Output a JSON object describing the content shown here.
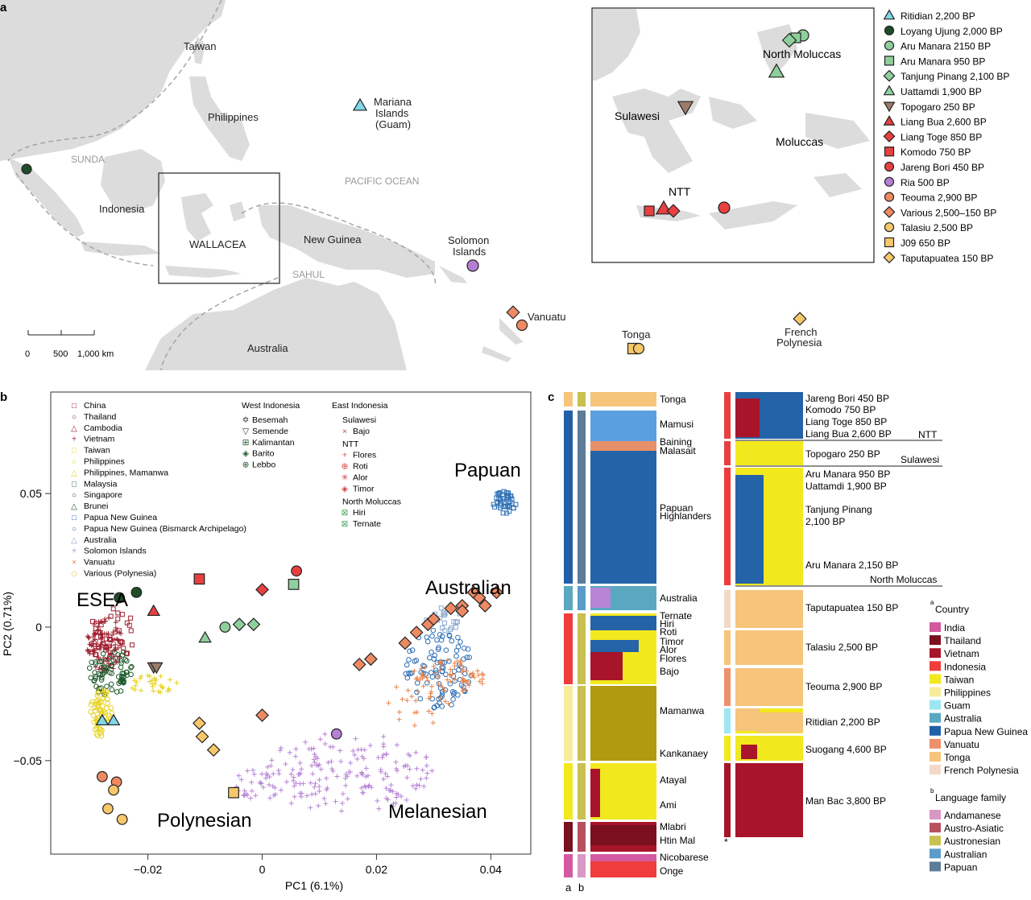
{
  "panel_a": {
    "letter": "a",
    "labels": {
      "taiwan": "Taiwan",
      "philippines": "Philippines",
      "sunda": "SUNDA",
      "indonesia": "Indonesia",
      "wallacea": "WALLACEA",
      "new_guinea": "New Guinea",
      "sahul": "SAHUL",
      "australia": "Australia",
      "pacific_ocean": "PACIFIC OCEAN",
      "mariana": [
        "Mariana",
        "Islands",
        "(Guam)"
      ],
      "solomon": [
        "Solomon",
        "Islands"
      ],
      "vanuatu": "Vanuatu",
      "tonga": "Tonga",
      "french_polynesia": [
        "French",
        "Polynesia"
      ]
    },
    "scale_bar": [
      "0",
      "500",
      "1,000 km"
    ],
    "inset_labels": {
      "north_moluccas": "North Moluccas",
      "sulawesi": "Sulawesi",
      "moluccas": "Moluccas",
      "ntt": "NTT"
    },
    "legend": [
      {
        "label": "Ritidian 2,200 BP",
        "shape": "triangle",
        "color": "#7fd6e8"
      },
      {
        "label": "Loyang Ujung 2,000 BP",
        "shape": "circle",
        "color": "#1e4d28"
      },
      {
        "label": "Aru Manara 2150 BP",
        "shape": "circle",
        "color": "#8fcf9c"
      },
      {
        "label": "Aru Manara 950 BP",
        "shape": "square",
        "color": "#8fcf9c"
      },
      {
        "label": "Tanjung Pinang 2,100 BP",
        "shape": "diamond",
        "color": "#8fcf9c"
      },
      {
        "label": "Uattamdi 1,900 BP",
        "shape": "triangle",
        "color": "#8fcf9c"
      },
      {
        "label": "Topogaro 250 BP",
        "shape": "triangle-down",
        "color": "#9c7b6a"
      },
      {
        "label": "Liang Bua 2,600 BP",
        "shape": "triangle",
        "color": "#e84040"
      },
      {
        "label": "Liang Toge 850 BP",
        "shape": "diamond",
        "color": "#e84040"
      },
      {
        "label": "Komodo 750 BP",
        "shape": "square",
        "color": "#e84040"
      },
      {
        "label": "Jareng Bori 450 BP",
        "shape": "circle",
        "color": "#e84040"
      },
      {
        "label": "Ria 500 BP",
        "shape": "circle",
        "color": "#b57fd6"
      },
      {
        "label": "Teouma 2,900 BP",
        "shape": "circle",
        "color": "#ee8a62"
      },
      {
        "label": "Various 2,500–150 BP",
        "shape": "diamond",
        "color": "#ee8a62"
      },
      {
        "label": "Talasiu 2,500 BP",
        "shape": "circle",
        "color": "#f6c86a"
      },
      {
        "label": "J09 650 BP",
        "shape": "square",
        "color": "#f6c86a"
      },
      {
        "label": "Taputapuatea 150 BP",
        "shape": "diamond",
        "color": "#f6c86a"
      }
    ]
  },
  "panel_b": {
    "letter": "b",
    "legend_left": [
      {
        "label": "China",
        "color": "#a02030",
        "marker": "□"
      },
      {
        "label": "Thailand",
        "color": "#a02030",
        "marker": "○"
      },
      {
        "label": "Cambodia",
        "color": "#a02030",
        "marker": "△"
      },
      {
        "label": "Vietnam",
        "color": "#a02030",
        "marker": "+"
      },
      {
        "label": "Taiwan",
        "color": "#e6d21e",
        "marker": "□"
      },
      {
        "label": "Philippines",
        "color": "#e6d21e",
        "marker": "○"
      },
      {
        "label": "Philippines, Mamanwa",
        "color": "#e6d21e",
        "marker": "△"
      },
      {
        "label": "Malaysia",
        "color": "#1e5a2c",
        "marker": "□"
      },
      {
        "label": "Singapore",
        "color": "#1e5a2c",
        "marker": "○"
      },
      {
        "label": "Brunei",
        "color": "#1e5a2c",
        "marker": "△"
      },
      {
        "label": "Papua New Guinea",
        "color": "#2e6fb5",
        "marker": "□"
      },
      {
        "label": "Papua New Guinea (Bismarck Archipelago)",
        "color": "#2e6fb5",
        "marker": "○"
      },
      {
        "label": "Australia",
        "color": "#8aa8d0",
        "marker": "△"
      },
      {
        "label": "Solomon Islands",
        "color": "#b784d6",
        "marker": "+"
      },
      {
        "label": "Vanuatu",
        "color": "#e8844a",
        "marker": "×"
      },
      {
        "label": "Various (Polynesia)",
        "color": "#e6c84a",
        "marker": "◇"
      }
    ],
    "west_title": "West Indonesia",
    "west": [
      {
        "label": "Besemah",
        "color": "#333333",
        "marker": "✡"
      },
      {
        "label": "Semende",
        "color": "#333333",
        "marker": "▽"
      },
      {
        "label": "Kalimantan",
        "color": "#1e5a2c",
        "marker": "⊞"
      },
      {
        "label": "Barito",
        "color": "#1e5a2c",
        "marker": "◈"
      },
      {
        "label": "Lebbo",
        "color": "#1e5a2c",
        "marker": "⊕"
      }
    ],
    "east_title": "East Indonesia",
    "east_groups": [
      {
        "title": "Sulawesi",
        "items": [
          {
            "label": "Bajo",
            "color": "#d64040",
            "marker": "×"
          }
        ]
      },
      {
        "title": "NTT",
        "items": [
          {
            "label": "Flores",
            "color": "#d64040",
            "marker": "+"
          },
          {
            "label": "Roti",
            "color": "#d64040",
            "marker": "⊕"
          },
          {
            "label": "Alor",
            "color": "#d64040",
            "marker": "✳"
          },
          {
            "label": "Timor",
            "color": "#d64040",
            "marker": "◈"
          }
        ]
      },
      {
        "title": "North Moluccas",
        "items": [
          {
            "label": "Hiri",
            "color": "#4fa864",
            "marker": "⊠"
          },
          {
            "label": "Ternate",
            "color": "#4fa864",
            "marker": "⊠"
          }
        ]
      }
    ],
    "region_labels": {
      "papuan": "Papuan",
      "australian": "Australian",
      "esea": "ESEA",
      "polynesian": "Polynesian",
      "melanesian": "Melanesian"
    }
  },
  "chart_data": {
    "type": "scatter",
    "xlabel": "PC1 (6.1%)",
    "ylabel": "PC2 (0.71%)",
    "xlim": [
      -0.037,
      0.047
    ],
    "ylim": [
      -0.085,
      0.088
    ],
    "xticks": [
      -0.02,
      0,
      0.02,
      0.04
    ],
    "xtick_labels": [
      "−0.02",
      "0",
      "0.02",
      "0.04"
    ],
    "yticks": [
      -0.05,
      0,
      0.05
    ],
    "ytick_labels": [
      "−0.05",
      "0",
      "0.05"
    ],
    "ancient_samples": [
      {
        "x": -0.026,
        "y": -0.035,
        "shape": "triangle",
        "color": "#7fd6e8"
      },
      {
        "x": -0.028,
        "y": -0.035,
        "shape": "triangle",
        "color": "#7fd6e8"
      },
      {
        "x": -0.025,
        "y": 0.011,
        "shape": "circle",
        "color": "#1e4d28"
      },
      {
        "x": -0.022,
        "y": 0.013,
        "shape": "circle",
        "color": "#1e4d28"
      },
      {
        "x": -0.019,
        "y": 0.006,
        "shape": "triangle",
        "color": "#e84040"
      },
      {
        "x": -0.011,
        "y": 0.018,
        "shape": "square",
        "color": "#e84040"
      },
      {
        "x": 0.006,
        "y": 0.021,
        "shape": "circle",
        "color": "#e84040"
      },
      {
        "x": 0.0,
        "y": 0.014,
        "shape": "diamond",
        "color": "#e84040"
      },
      {
        "x": 0.0055,
        "y": 0.016,
        "shape": "square",
        "color": "#8fcf9c"
      },
      {
        "x": -0.0065,
        "y": 0.0,
        "shape": "circle",
        "color": "#8fcf9c"
      },
      {
        "x": -0.004,
        "y": 0.001,
        "shape": "diamond",
        "color": "#8fcf9c"
      },
      {
        "x": -0.01,
        "y": -0.004,
        "shape": "triangle",
        "color": "#8fcf9c"
      },
      {
        "x": -0.0015,
        "y": 0.001,
        "shape": "diamond",
        "color": "#8fcf9c"
      },
      {
        "x": -0.019,
        "y": -0.015,
        "shape": "triangle-down",
        "color": "#9c7b6a"
      },
      {
        "x": -0.0185,
        "y": -0.015,
        "shape": "triangle-down",
        "color": "#9c7b6a"
      },
      {
        "x": 0.013,
        "y": -0.04,
        "shape": "circle",
        "color": "#b57fd6"
      },
      {
        "x": -0.028,
        "y": -0.056,
        "shape": "circle",
        "color": "#ee8a62"
      },
      {
        "x": -0.0255,
        "y": -0.058,
        "shape": "circle",
        "color": "#ee8a62"
      },
      {
        "x": -0.026,
        "y": -0.061,
        "shape": "circle",
        "color": "#f6c86a"
      },
      {
        "x": -0.027,
        "y": -0.068,
        "shape": "circle",
        "color": "#f6c86a"
      },
      {
        "x": -0.0245,
        "y": -0.072,
        "shape": "circle",
        "color": "#f6c86a"
      },
      {
        "x": -0.005,
        "y": -0.062,
        "shape": "square",
        "color": "#f6c86a"
      },
      {
        "x": -0.011,
        "y": -0.036,
        "shape": "diamond",
        "color": "#f6c86a"
      },
      {
        "x": -0.0105,
        "y": -0.041,
        "shape": "diamond",
        "color": "#f6c86a"
      },
      {
        "x": -0.0085,
        "y": -0.046,
        "shape": "diamond",
        "color": "#f6c86a"
      },
      {
        "x": 0.0,
        "y": -0.033,
        "shape": "diamond",
        "color": "#ee8a62"
      },
      {
        "x": 0.017,
        "y": -0.014,
        "shape": "diamond",
        "color": "#ee8a62"
      },
      {
        "x": 0.019,
        "y": -0.012,
        "shape": "diamond",
        "color": "#ee8a62"
      },
      {
        "x": 0.025,
        "y": -0.006,
        "shape": "diamond",
        "color": "#ee8a62"
      },
      {
        "x": 0.027,
        "y": -0.002,
        "shape": "diamond",
        "color": "#ee8a62"
      },
      {
        "x": 0.029,
        "y": 0.001,
        "shape": "diamond",
        "color": "#ee8a62"
      },
      {
        "x": 0.03,
        "y": 0.003,
        "shape": "diamond",
        "color": "#ee8a62"
      },
      {
        "x": 0.033,
        "y": 0.007,
        "shape": "diamond",
        "color": "#ee8a62"
      },
      {
        "x": 0.035,
        "y": 0.008,
        "shape": "diamond",
        "color": "#ee8a62"
      },
      {
        "x": 0.037,
        "y": 0.013,
        "shape": "diamond",
        "color": "#ee8a62"
      },
      {
        "x": 0.038,
        "y": 0.011,
        "shape": "diamond",
        "color": "#ee8a62"
      },
      {
        "x": 0.041,
        "y": 0.013,
        "shape": "diamond",
        "color": "#ee8a62"
      },
      {
        "x": 0.039,
        "y": 0.008,
        "shape": "diamond",
        "color": "#ee8a62"
      },
      {
        "x": 0.035,
        "y": 0.006,
        "shape": "diamond",
        "color": "#ee8a62"
      }
    ]
  },
  "panel_c": {
    "letter": "c",
    "left_labels": [
      "Tonga",
      "Mamusi",
      "Baining",
      "Malasait",
      "Papuan",
      "Highlanders",
      "Australia",
      "Ternate",
      "Hiri",
      "Roti",
      "Timor",
      "Alor",
      "Flores",
      "Bajo",
      "Mamanwa",
      "Kankanaey",
      "Atayal",
      "Ami",
      "Mlabri",
      "Htin Mal",
      "Nicobarese",
      "Onge"
    ],
    "right_labels": [
      "Jareng Bori 450 BP",
      "Komodo 750 BP",
      "Liang Toge 850 BP",
      "Liang Bua 2,600 BP",
      "Topogaro 250 BP",
      "Aru Manara 950 BP",
      "Uattamdi 1,900 BP",
      "Tanjung Pinang",
      "2,100 BP",
      "Aru Manara 2,150 BP",
      "Taputapuatea 150 BP",
      "Talasiu 2,500 BP",
      "Teouma 2,900 BP",
      "Ritidian 2,200 BP",
      "Suogang 4,600 BP",
      "Man Bac 3,800 BP"
    ],
    "group_labels": {
      "ntt": "NTT",
      "sulawesi": "Sulawesi",
      "north_moluccas": "North Moluccas"
    },
    "asterisk": "*",
    "ab_labels": [
      "a",
      "b"
    ],
    "country_title": "Country",
    "country_sup": "a",
    "countries": [
      {
        "label": "India",
        "color": "#d45aa0"
      },
      {
        "label": "Thailand",
        "color": "#7a1020"
      },
      {
        "label": "Vietnam",
        "color": "#a8142a"
      },
      {
        "label": "Indonesia",
        "color": "#f03c3c"
      },
      {
        "label": "Taiwan",
        "color": "#f2e81e"
      },
      {
        "label": "Philippines",
        "color": "#f6ec9c"
      },
      {
        "label": "Guam",
        "color": "#9ee6f2"
      },
      {
        "label": "Australia",
        "color": "#5aa8c0"
      },
      {
        "label": "Papua New Guinea",
        "color": "#2060a8"
      },
      {
        "label": "Vanuatu",
        "color": "#ee906a"
      },
      {
        "label": "Tonga",
        "color": "#f6c47a"
      },
      {
        "label": "French Polynesia",
        "color": "#f2d8c6"
      }
    ],
    "language_title": "Language family",
    "language_sup": "b",
    "languages": [
      {
        "label": "Andamanese",
        "color": "#d898c4"
      },
      {
        "label": "Austro-Asiatic",
        "color": "#b85060"
      },
      {
        "label": "Austronesian",
        "color": "#c8c050"
      },
      {
        "label": "Australian",
        "color": "#5a9cc8"
      },
      {
        "label": "Papuan",
        "color": "#5c7c98"
      }
    ]
  }
}
